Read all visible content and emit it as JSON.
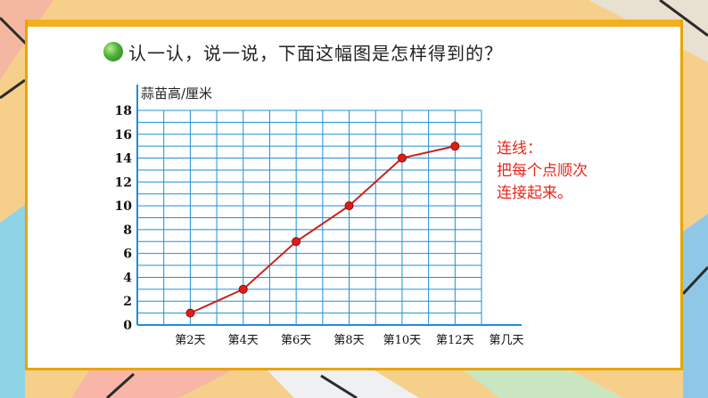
{
  "question": "认一认，说一说，下面这幅图是怎样得到的？",
  "note": [
    "连线：",
    "把每个点顺次",
    "连接起来。"
  ],
  "colors": {
    "grid": "#1f8fd6",
    "line": "#c8231a",
    "point": "#e21c16",
    "note": "#e8261b",
    "border": "#e7a500"
  },
  "icons": {
    "bullet": "green-circle-bullet-icon"
  },
  "chart_data": {
    "type": "line",
    "title": "",
    "ylabel": "蒜苗高/厘米",
    "xlabel": "第几天",
    "categories": [
      "第2天",
      "第4天",
      "第6天",
      "第8天",
      "第10天",
      "第12天"
    ],
    "values": [
      1,
      3,
      7,
      10,
      14,
      15
    ],
    "ylim": [
      0,
      18
    ],
    "yticks": [
      0,
      2,
      4,
      6,
      8,
      10,
      12,
      14,
      16,
      18
    ],
    "grid": true
  }
}
